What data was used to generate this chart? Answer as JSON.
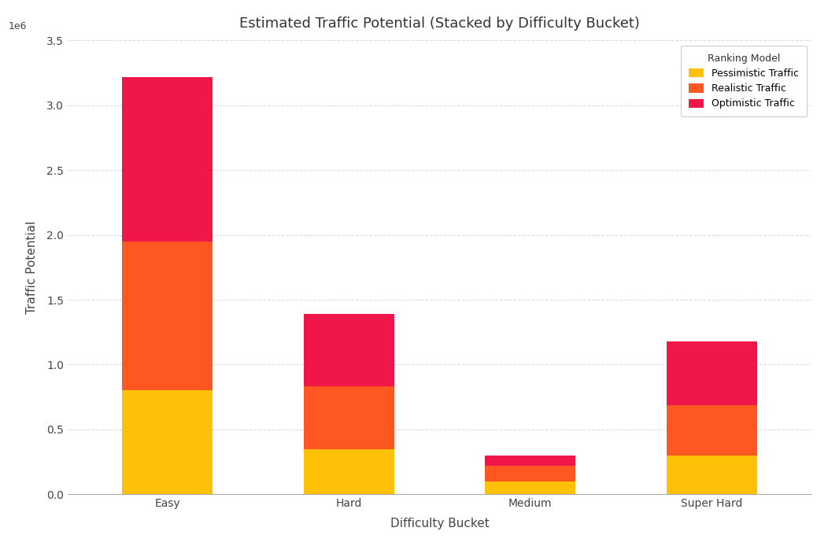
{
  "title": "Estimated Traffic Potential (Stacked by Difficulty Bucket)",
  "xlabel": "Difficulty Bucket",
  "ylabel": "Traffic Potential",
  "categories": [
    "Easy",
    "Hard",
    "Medium",
    "Super Hard"
  ],
  "pessimistic": [
    800000,
    350000,
    100000,
    300000
  ],
  "realistic": [
    1150000,
    480000,
    120000,
    390000
  ],
  "optimistic": [
    1270000,
    560000,
    80000,
    490000
  ],
  "colors": {
    "pessimistic": "#FFC107",
    "realistic": "#FF5722",
    "optimistic": "#F0164A"
  },
  "legend_title": "Ranking Model",
  "legend_labels": [
    "Pessimistic Traffic",
    "Realistic Traffic",
    "Optimistic Traffic"
  ],
  "background_color": "#ffffff",
  "panel_background": "#f8f8f8",
  "grid_color": "#cccccc",
  "title_fontsize": 13,
  "axis_label_fontsize": 11,
  "tick_fontsize": 10,
  "bar_width": 0.5,
  "ylim_max": 3500000
}
